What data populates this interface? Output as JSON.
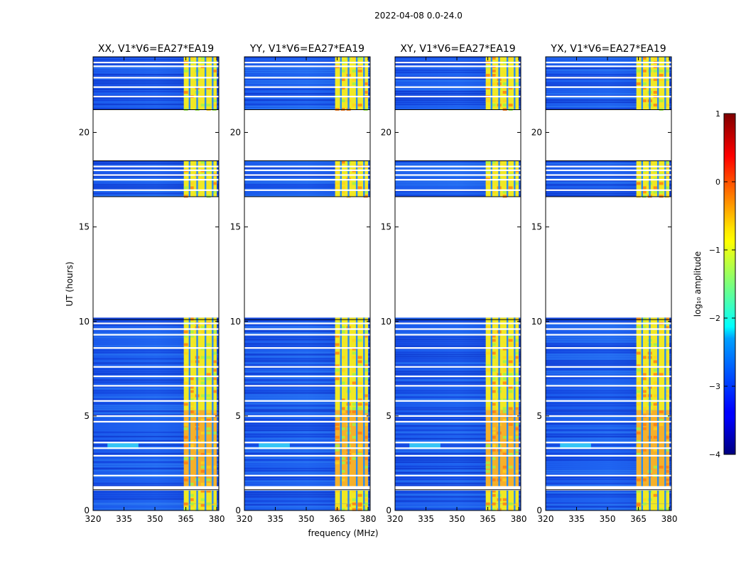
{
  "chart_data": {
    "type": "heatmap",
    "suptitle": "2022-04-08 0.0-24.0",
    "xlabel": "frequency (MHz)",
    "ylabel": "UT (hours)",
    "xlim": [
      320,
      381
    ],
    "ylim": [
      0,
      24
    ],
    "x_ticks": [
      320,
      335,
      350,
      365,
      380
    ],
    "y_ticks": [
      0,
      5,
      10,
      15,
      20
    ],
    "panels": [
      {
        "title": "XX, V1*V6=EA27*EA19"
      },
      {
        "title": "YY, V1*V6=EA27*EA19"
      },
      {
        "title": "XY, V1*V6=EA27*EA19"
      },
      {
        "title": "YX, V1*V6=EA27*EA19"
      }
    ],
    "data_blocks_ut_hours": [
      [
        0.0,
        0.35
      ],
      [
        0.35,
        1.1
      ],
      [
        1.25,
        5.3
      ],
      [
        5.3,
        10.2
      ],
      [
        16.6,
        18.5
      ],
      [
        21.2,
        24.0
      ]
    ],
    "flagged_ut_hours": [
      1.1,
      1.25,
      1.85,
      2.9,
      3.3,
      3.6,
      4.7,
      5.0,
      5.8,
      6.6,
      7.1,
      7.6,
      8.6,
      9.3,
      9.6,
      9.9,
      16.95,
      17.5,
      17.75,
      18.0,
      18.2,
      21.9,
      22.4,
      22.9,
      23.5,
      23.7
    ],
    "bright_band_mhz": [
      364,
      380
    ],
    "bright_band_gaps_mhz": [
      366.8,
      370.5,
      374.5,
      378.0
    ],
    "colorbar": {
      "label": "log₁₀ amplitude",
      "range": [
        -4,
        1
      ],
      "ticks": [
        1,
        0,
        -1,
        -2,
        -3,
        -4
      ],
      "tick_labels": [
        "1",
        "0",
        "−1",
        "−2",
        "−3",
        "−4"
      ]
    }
  }
}
